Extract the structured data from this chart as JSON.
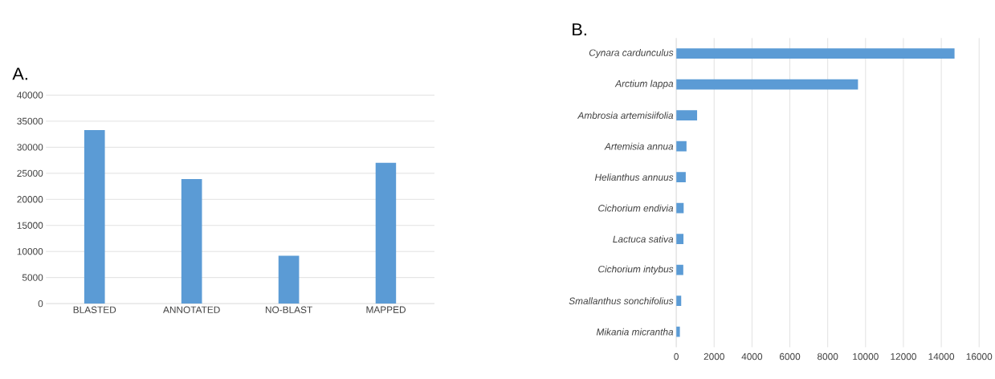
{
  "chart_data": [
    {
      "type": "bar",
      "title": "A.",
      "categories": [
        "BLASTED",
        "ANNOTATED",
        "NO-BLAST",
        "MAPPED"
      ],
      "values": [
        33300,
        23900,
        9200,
        27000
      ],
      "color": "#5b9bd5",
      "ylim": [
        0,
        40000
      ],
      "yticks": [
        0,
        5000,
        10000,
        15000,
        20000,
        25000,
        30000,
        35000,
        40000
      ],
      "grid": "y"
    },
    {
      "type": "bar",
      "title": "B.",
      "orientation": "horizontal",
      "categories": [
        "*Cynara cardunculus*",
        "*Arctium lappa*",
        "*Ambrosia artemisiifolia*",
        "*Artemisia annua*",
        "*Helianthus annuus*",
        "*Cichorium endivia*",
        "*Lactuca sativa*",
        "*Cichorium intybus*",
        "*Smallanthus sonchifolius*",
        "*Mikania micrantha*"
      ],
      "values": [
        14700,
        9600,
        1100,
        540,
        500,
        390,
        380,
        370,
        260,
        190
      ],
      "color": "#5b9bd5",
      "xlim": [
        0,
        16000
      ],
      "xticks": [
        0,
        2000,
        4000,
        6000,
        8000,
        10000,
        12000,
        14000,
        16000
      ],
      "grid": "x"
    }
  ]
}
